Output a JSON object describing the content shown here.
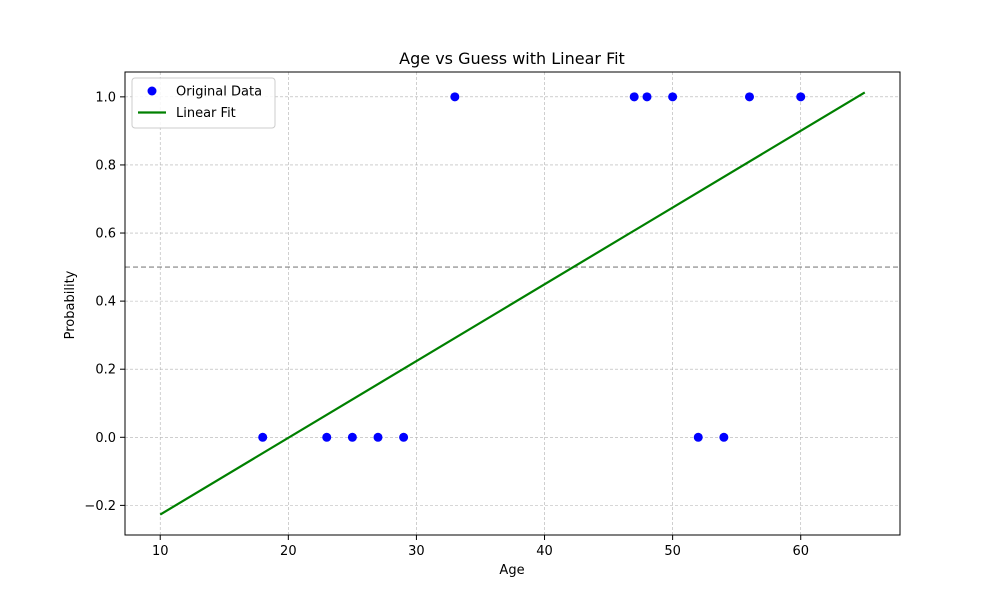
{
  "chart_data": {
    "type": "scatter",
    "title": "Age vs Guess with Linear Fit",
    "xlabel": "Age",
    "ylabel": "Probability",
    "xlim": [
      7.25,
      67.75
    ],
    "ylim": [
      -0.287,
      1.073
    ],
    "xticks": [
      10,
      20,
      30,
      40,
      50,
      60
    ],
    "yticks": [
      -0.2,
      0.0,
      0.2,
      0.4,
      0.6,
      0.8,
      1.0
    ],
    "xtick_labels": [
      "10",
      "20",
      "30",
      "40",
      "50",
      "60"
    ],
    "ytick_labels": [
      "−0.2",
      "0.0",
      "0.2",
      "0.4",
      "0.6",
      "0.8",
      "1.0"
    ],
    "grid": true,
    "legend_position": "top-left",
    "series": [
      {
        "name": "Original Data",
        "kind": "scatter",
        "color": "#0000ff",
        "x": [
          18,
          23,
          25,
          27,
          29,
          33,
          47,
          48,
          50,
          52,
          54,
          56,
          60
        ],
        "y": [
          0,
          0,
          0,
          0,
          0,
          1,
          1,
          1,
          1,
          0,
          0,
          1,
          1
        ]
      },
      {
        "name": "Linear Fit",
        "kind": "line",
        "color": "#008000",
        "x": [
          10,
          65
        ],
        "y": [
          -0.227,
          1.013
        ]
      }
    ],
    "reference_line": {
      "y": 0.5,
      "color": "#808080",
      "style": "dashed"
    }
  }
}
